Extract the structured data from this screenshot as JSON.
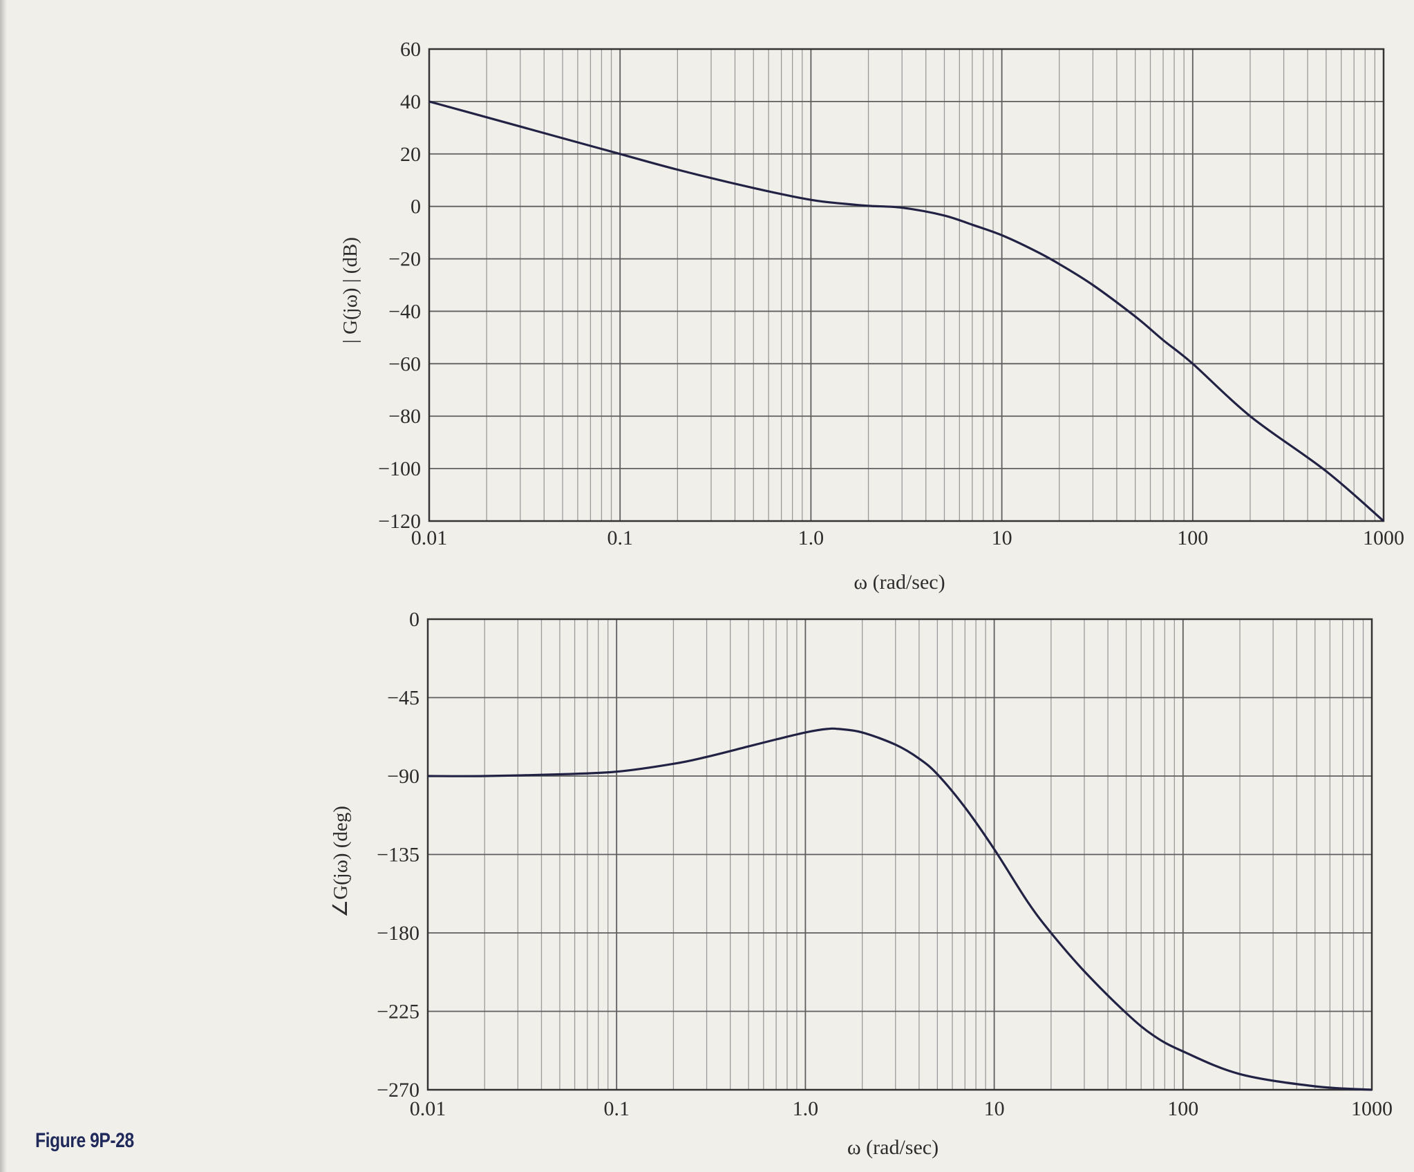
{
  "figure_caption": "Figure 9P-28",
  "colors": {
    "background": "#f1efea",
    "grid": "#9a9a9a",
    "frame": "#333333",
    "curve": "#222244",
    "caption": "#1f2a5a"
  },
  "chart_data": [
    {
      "type": "line",
      "xscale": "log",
      "xlim": [
        0.01,
        1000
      ],
      "ylim": [
        -120,
        60
      ],
      "xlabel": "ω (rad/sec)",
      "ylabel": "| G(jω) | (dB)",
      "x_tick_labels": [
        "0.01",
        "0.1",
        "1.0",
        "10",
        "100",
        "1000"
      ],
      "x_ticks": [
        0.01,
        0.1,
        1,
        10,
        100,
        1000
      ],
      "y_tick_labels": [
        "60",
        "40",
        "20",
        "0",
        "−20",
        "−40",
        "−60",
        "−80",
        "−100",
        "−120"
      ],
      "y_ticks": [
        60,
        40,
        20,
        0,
        -20,
        -40,
        -60,
        -80,
        -100,
        -120
      ],
      "grid": true,
      "series": [
        {
          "x": [
            0.01,
            0.02,
            0.05,
            0.1,
            0.2,
            0.5,
            1,
            1.5,
            2,
            3,
            5,
            7,
            10,
            15,
            20,
            30,
            50,
            70,
            100,
            200,
            500,
            1000
          ],
          "values": [
            40,
            34,
            26,
            20,
            14,
            7,
            2.5,
            1,
            0.2,
            -0.5,
            -3.5,
            -7,
            -11,
            -17,
            -22,
            -30,
            -42,
            -51,
            -60,
            -80,
            -101,
            -120
          ]
        }
      ]
    },
    {
      "type": "line",
      "xscale": "log",
      "xlim": [
        0.01,
        1000
      ],
      "ylim": [
        -270,
        0
      ],
      "xlabel": "ω (rad/sec)",
      "ylabel": "∠G(jω) (deg)",
      "x_tick_labels": [
        "0.01",
        "0.1",
        "1.0",
        "10",
        "100",
        "1000"
      ],
      "x_ticks": [
        0.01,
        0.1,
        1,
        10,
        100,
        1000
      ],
      "y_tick_labels": [
        "0",
        "−45",
        "−90",
        "−135",
        "−180",
        "−225",
        "−270"
      ],
      "y_ticks": [
        0,
        -45,
        -90,
        -135,
        -180,
        -225,
        -270
      ],
      "grid": true,
      "series": [
        {
          "x": [
            0.01,
            0.02,
            0.05,
            0.1,
            0.2,
            0.3,
            0.5,
            0.7,
            1,
            1.3,
            1.5,
            2,
            3,
            4,
            5,
            7,
            10,
            15,
            20,
            30,
            50,
            70,
            100,
            200,
            500,
            1000
          ],
          "values": [
            -90,
            -90,
            -89,
            -87.5,
            -83,
            -79,
            -73,
            -69,
            -65,
            -63,
            -63,
            -65,
            -72,
            -80,
            -89,
            -108,
            -132,
            -162,
            -180,
            -202,
            -226,
            -239,
            -248,
            -261,
            -268,
            -270
          ]
        }
      ]
    }
  ]
}
